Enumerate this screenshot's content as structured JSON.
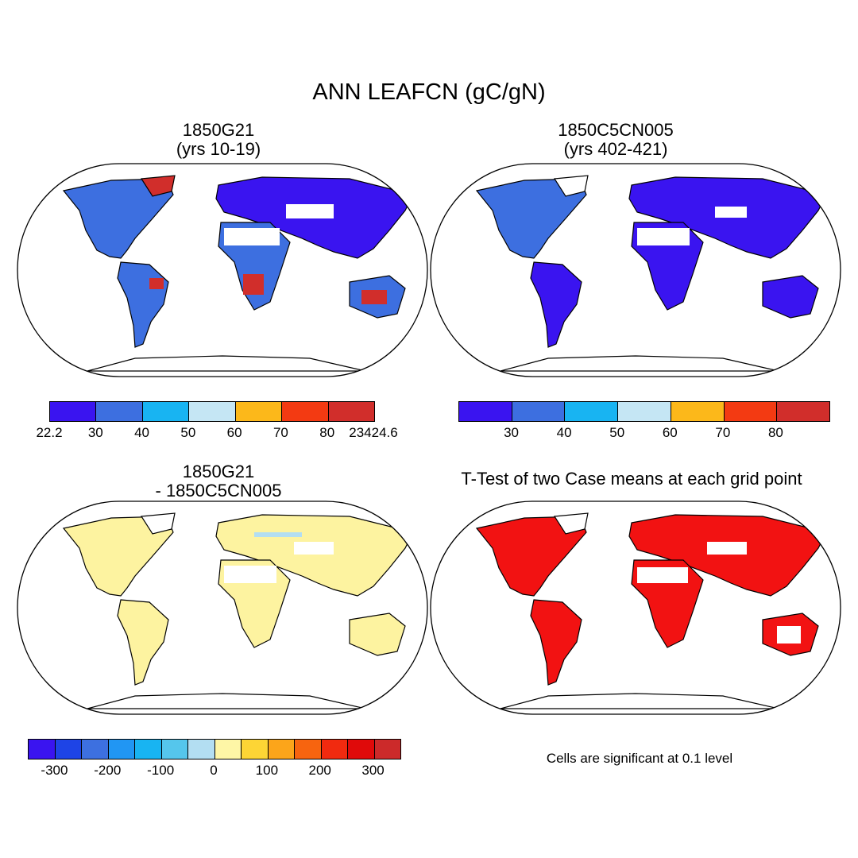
{
  "title": "ANN LEAFCN (gC/gN)",
  "panels": [
    {
      "title_line1": "1850G21",
      "title_line2": "(yrs 10-19)"
    },
    {
      "title_line1": "1850C5CN005",
      "title_line2": "(yrs 402-421)"
    },
    {
      "title_line1": "1850G21",
      "title_line2": "- 1850C5CN005"
    },
    {
      "title_line1": "T-Test of two Case means at each grid point",
      "title_line2": ""
    }
  ],
  "note": "Cells are significant at 0.1 level",
  "colorbars": {
    "top_left": {
      "colors": [
        "#3a14f0",
        "#3d6fe0",
        "#18b4f2",
        "#c5e6f4",
        "#fcb81a",
        "#f33a12",
        "#d12e2b"
      ],
      "labels": [
        "22.2",
        "30",
        "40",
        "50",
        "60",
        "70",
        "80",
        "23424.6"
      ]
    },
    "top_right": {
      "colors": [
        "#3a14f0",
        "#3d6fe0",
        "#18b4f2",
        "#c5e6f4",
        "#fcb81a",
        "#f33a12",
        "#d12e2b"
      ],
      "labels": [
        "",
        "30",
        "40",
        "50",
        "60",
        "70",
        "80",
        ""
      ]
    },
    "difference": {
      "colors": [
        "#3a14f0",
        "#1e44e6",
        "#3d70e0",
        "#2196f3",
        "#18b4f2",
        "#55c6ec",
        "#b3def2",
        "#fef6a6",
        "#fdd535",
        "#fca51a",
        "#f7640f",
        "#f12a0f",
        "#e00a0a",
        "#cc2a2a"
      ],
      "labels": [
        "-300",
        "-200",
        "-100",
        "0",
        "100",
        "200",
        "300"
      ]
    }
  },
  "map_colors": {
    "ocean": "#ffffff",
    "coast": "#000000",
    "significant": "#f21212",
    "diff_land": "#fdf3a0"
  }
}
